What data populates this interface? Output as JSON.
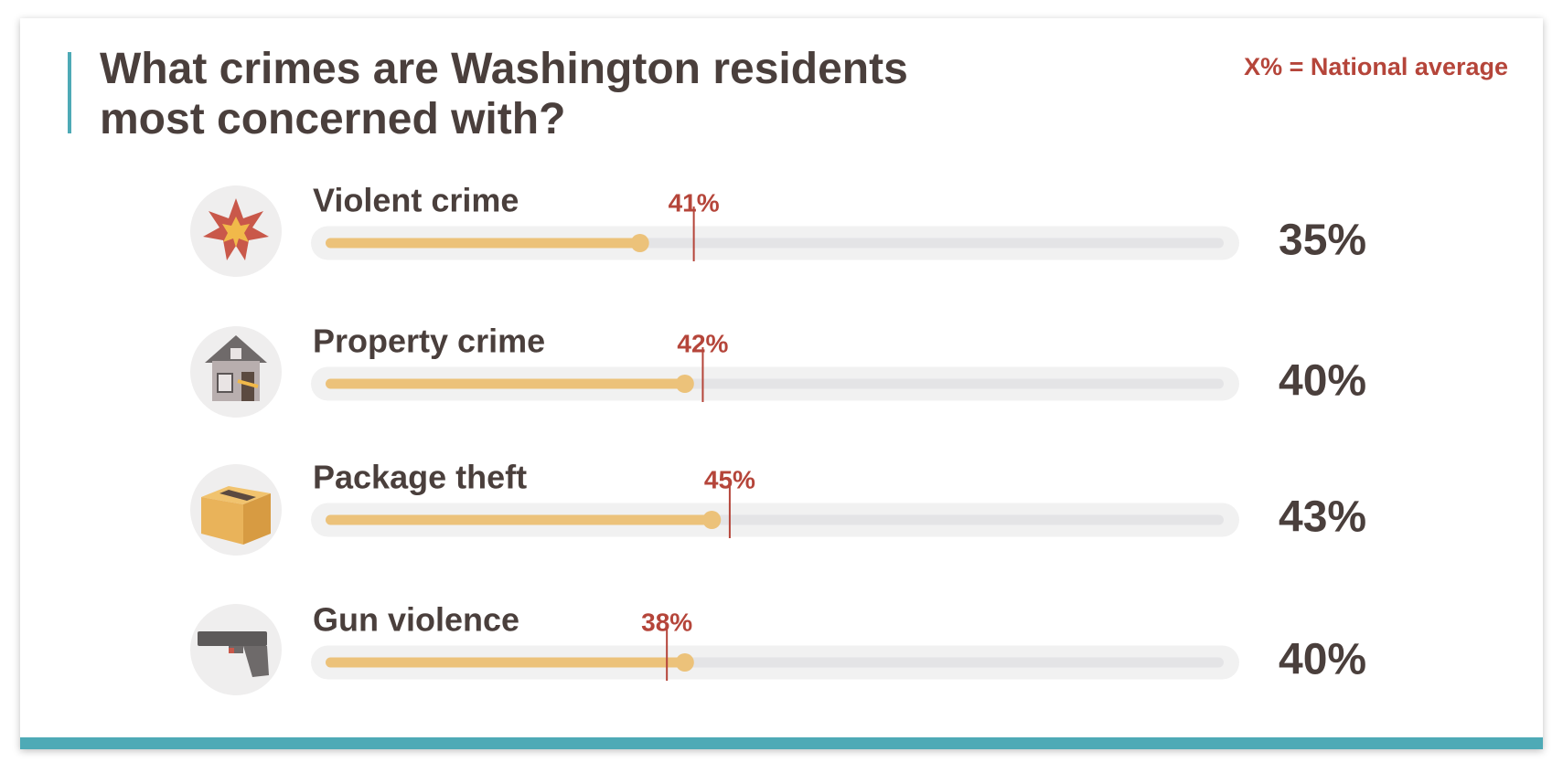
{
  "chart_data": {
    "type": "bar",
    "orientation": "horizontal",
    "title": "What crimes are Washington residents most concerned with?",
    "categories": [
      "Violent crime",
      "Property crime",
      "Package theft",
      "Gun violence"
    ],
    "values": [
      35,
      40,
      43,
      40
    ],
    "value_labels": [
      "35%",
      "40%",
      "43%",
      "40%"
    ],
    "color": "#ecc27a",
    "xlim": [
      0,
      100
    ],
    "national_average": {
      "label": "X% = National average",
      "values": [
        41,
        42,
        45,
        38
      ],
      "value_labels": [
        "41%",
        "42%",
        "45%",
        "38%"
      ],
      "color": "#b5453a"
    }
  }
}
